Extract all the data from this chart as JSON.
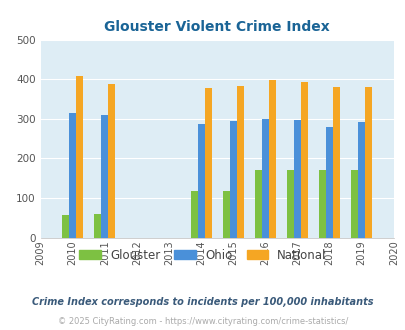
{
  "title": "Glouster Violent Crime Index",
  "all_years": [
    2009,
    2010,
    2011,
    2012,
    2013,
    2014,
    2015,
    2016,
    2017,
    2018,
    2019,
    2020
  ],
  "data_years": [
    2010,
    2011,
    2014,
    2015,
    2016,
    2017,
    2018,
    2019
  ],
  "glouster": [
    57,
    60,
    117,
    117,
    170,
    170,
    170,
    170
  ],
  "ohio": [
    315,
    310,
    288,
    295,
    300,
    298,
    280,
    293
  ],
  "national": [
    407,
    387,
    377,
    384,
    398,
    394,
    381,
    380
  ],
  "bar_colors": {
    "glouster": "#7dc142",
    "ohio": "#4a90d9",
    "national": "#f5a623"
  },
  "ylim": [
    0,
    500
  ],
  "yticks": [
    0,
    100,
    200,
    300,
    400,
    500
  ],
  "bg_color": "#deedf5",
  "grid_color": "#ffffff",
  "title_color": "#1a6496",
  "footnote1": "Crime Index corresponds to incidents per 100,000 inhabitants",
  "footnote2": "© 2025 CityRating.com - https://www.cityrating.com/crime-statistics/",
  "footnote1_color": "#3a5a7a",
  "footnote2_color": "#aaaaaa",
  "bar_width": 0.22
}
